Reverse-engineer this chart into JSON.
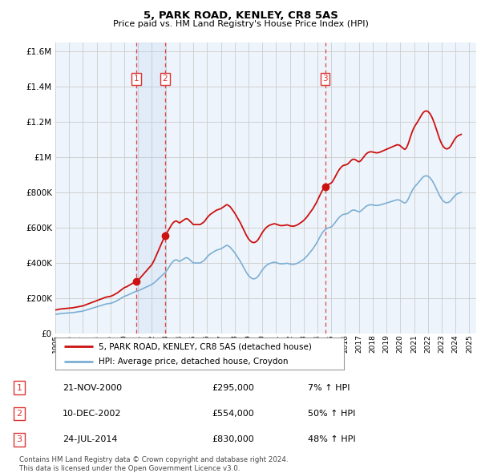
{
  "title": "5, PARK ROAD, KENLEY, CR8 5AS",
  "subtitle": "Price paid vs. HM Land Registry's House Price Index (HPI)",
  "background_color": "#ffffff",
  "chart_bg_color": "#eef4fb",
  "grid_color": "#cccccc",
  "hpi_line_color": "#7bafd4",
  "price_line_color": "#cc1111",
  "vline_color": "#dd3333",
  "shade_color": "#ddeeff",
  "ylim": [
    0,
    1650000
  ],
  "yticks": [
    0,
    200000,
    400000,
    600000,
    800000,
    1000000,
    1200000,
    1400000,
    1600000
  ],
  "ytick_labels": [
    "£0",
    "£200K",
    "£400K",
    "£600K",
    "£800K",
    "£1M",
    "£1.2M",
    "£1.4M",
    "£1.6M"
  ],
  "sales": [
    {
      "label": "1",
      "date": "21-NOV-2000",
      "year": 2000.89,
      "price": 295000,
      "pct": "7%",
      "dir": "↑"
    },
    {
      "label": "2",
      "date": "10-DEC-2002",
      "year": 2002.94,
      "price": 554000,
      "pct": "50%",
      "dir": "↑"
    },
    {
      "label": "3",
      "date": "24-JUL-2014",
      "year": 2014.55,
      "price": 830000,
      "pct": "48%",
      "dir": "↑"
    }
  ],
  "legend_entries": [
    "5, PARK ROAD, KENLEY, CR8 5AS (detached house)",
    "HPI: Average price, detached house, Croydon"
  ],
  "footer": "Contains HM Land Registry data © Crown copyright and database right 2024.\nThis data is licensed under the Open Government Licence v3.0.",
  "hpi_monthly": {
    "years": [
      1995.0,
      1995.083,
      1995.167,
      1995.25,
      1995.333,
      1995.417,
      1995.5,
      1995.583,
      1995.667,
      1995.75,
      1995.833,
      1995.917,
      1996.0,
      1996.083,
      1996.167,
      1996.25,
      1996.333,
      1996.417,
      1996.5,
      1996.583,
      1996.667,
      1996.75,
      1996.833,
      1996.917,
      1997.0,
      1997.083,
      1997.167,
      1997.25,
      1997.333,
      1997.417,
      1997.5,
      1997.583,
      1997.667,
      1997.75,
      1997.833,
      1997.917,
      1998.0,
      1998.083,
      1998.167,
      1998.25,
      1998.333,
      1998.417,
      1998.5,
      1998.583,
      1998.667,
      1998.75,
      1998.833,
      1998.917,
      1999.0,
      1999.083,
      1999.167,
      1999.25,
      1999.333,
      1999.417,
      1999.5,
      1999.583,
      1999.667,
      1999.75,
      1999.833,
      1999.917,
      2000.0,
      2000.083,
      2000.167,
      2000.25,
      2000.333,
      2000.417,
      2000.5,
      2000.583,
      2000.667,
      2000.75,
      2000.833,
      2000.917,
      2001.0,
      2001.083,
      2001.167,
      2001.25,
      2001.333,
      2001.417,
      2001.5,
      2001.583,
      2001.667,
      2001.75,
      2001.833,
      2001.917,
      2002.0,
      2002.083,
      2002.167,
      2002.25,
      2002.333,
      2002.417,
      2002.5,
      2002.583,
      2002.667,
      2002.75,
      2002.833,
      2002.917,
      2003.0,
      2003.083,
      2003.167,
      2003.25,
      2003.333,
      2003.417,
      2003.5,
      2003.583,
      2003.667,
      2003.75,
      2003.833,
      2003.917,
      2004.0,
      2004.083,
      2004.167,
      2004.25,
      2004.333,
      2004.417,
      2004.5,
      2004.583,
      2004.667,
      2004.75,
      2004.833,
      2004.917,
      2005.0,
      2005.083,
      2005.167,
      2005.25,
      2005.333,
      2005.417,
      2005.5,
      2005.583,
      2005.667,
      2005.75,
      2005.833,
      2005.917,
      2006.0,
      2006.083,
      2006.167,
      2006.25,
      2006.333,
      2006.417,
      2006.5,
      2006.583,
      2006.667,
      2006.75,
      2006.833,
      2006.917,
      2007.0,
      2007.083,
      2007.167,
      2007.25,
      2007.333,
      2007.417,
      2007.5,
      2007.583,
      2007.667,
      2007.75,
      2007.833,
      2007.917,
      2008.0,
      2008.083,
      2008.167,
      2008.25,
      2008.333,
      2008.417,
      2008.5,
      2008.583,
      2008.667,
      2008.75,
      2008.833,
      2008.917,
      2009.0,
      2009.083,
      2009.167,
      2009.25,
      2009.333,
      2009.417,
      2009.5,
      2009.583,
      2009.667,
      2009.75,
      2009.833,
      2009.917,
      2010.0,
      2010.083,
      2010.167,
      2010.25,
      2010.333,
      2010.417,
      2010.5,
      2010.583,
      2010.667,
      2010.75,
      2010.833,
      2010.917,
      2011.0,
      2011.083,
      2011.167,
      2011.25,
      2011.333,
      2011.417,
      2011.5,
      2011.583,
      2011.667,
      2011.75,
      2011.833,
      2011.917,
      2012.0,
      2012.083,
      2012.167,
      2012.25,
      2012.333,
      2012.417,
      2012.5,
      2012.583,
      2012.667,
      2012.75,
      2012.833,
      2012.917,
      2013.0,
      2013.083,
      2013.167,
      2013.25,
      2013.333,
      2013.417,
      2013.5,
      2013.583,
      2013.667,
      2013.75,
      2013.833,
      2013.917,
      2014.0,
      2014.083,
      2014.167,
      2014.25,
      2014.333,
      2014.417,
      2014.5,
      2014.583,
      2014.667,
      2014.75,
      2014.833,
      2014.917,
      2015.0,
      2015.083,
      2015.167,
      2015.25,
      2015.333,
      2015.417,
      2015.5,
      2015.583,
      2015.667,
      2015.75,
      2015.833,
      2015.917,
      2016.0,
      2016.083,
      2016.167,
      2016.25,
      2016.333,
      2016.417,
      2016.5,
      2016.583,
      2016.667,
      2016.75,
      2016.833,
      2016.917,
      2017.0,
      2017.083,
      2017.167,
      2017.25,
      2017.333,
      2017.417,
      2017.5,
      2017.583,
      2017.667,
      2017.75,
      2017.833,
      2017.917,
      2018.0,
      2018.083,
      2018.167,
      2018.25,
      2018.333,
      2018.417,
      2018.5,
      2018.583,
      2018.667,
      2018.75,
      2018.833,
      2018.917,
      2019.0,
      2019.083,
      2019.167,
      2019.25,
      2019.333,
      2019.417,
      2019.5,
      2019.583,
      2019.667,
      2019.75,
      2019.833,
      2019.917,
      2020.0,
      2020.083,
      2020.167,
      2020.25,
      2020.333,
      2020.417,
      2020.5,
      2020.583,
      2020.667,
      2020.75,
      2020.833,
      2020.917,
      2021.0,
      2021.083,
      2021.167,
      2021.25,
      2021.333,
      2021.417,
      2021.5,
      2021.583,
      2021.667,
      2021.75,
      2021.833,
      2021.917,
      2022.0,
      2022.083,
      2022.167,
      2022.25,
      2022.333,
      2022.417,
      2022.5,
      2022.583,
      2022.667,
      2022.75,
      2022.833,
      2022.917,
      2023.0,
      2023.083,
      2023.167,
      2023.25,
      2023.333,
      2023.417,
      2023.5,
      2023.583,
      2023.667,
      2023.75,
      2023.833,
      2023.917,
      2024.0,
      2024.083,
      2024.167,
      2024.25,
      2024.333,
      2024.417
    ],
    "values": [
      108000,
      109000,
      110000,
      111000,
      112000,
      113000,
      113500,
      114000,
      114500,
      115000,
      115500,
      116000,
      116500,
      117000,
      117500,
      118000,
      119000,
      120000,
      121000,
      122000,
      123000,
      124000,
      125000,
      126000,
      127000,
      129000,
      131000,
      133000,
      135000,
      137000,
      139000,
      141000,
      143000,
      145000,
      147000,
      149000,
      151000,
      153000,
      155000,
      157000,
      159000,
      161000,
      163000,
      165000,
      167000,
      168000,
      169000,
      170000,
      171000,
      173000,
      175000,
      178000,
      181000,
      184000,
      187000,
      191000,
      195000,
      199000,
      203000,
      207000,
      211000,
      213000,
      215000,
      218000,
      221000,
      224000,
      227000,
      230000,
      233000,
      236000,
      238000,
      240000,
      242000,
      245000,
      248000,
      251000,
      254000,
      257000,
      260000,
      263000,
      266000,
      269000,
      272000,
      275000,
      278000,
      283000,
      288000,
      294000,
      300000,
      306000,
      312000,
      318000,
      324000,
      330000,
      336000,
      342000,
      348000,
      358000,
      368000,
      378000,
      388000,
      398000,
      406000,
      412000,
      416000,
      418000,
      416000,
      412000,
      408000,
      412000,
      416000,
      420000,
      424000,
      428000,
      430000,
      428000,
      424000,
      418000,
      412000,
      406000,
      400000,
      400000,
      400000,
      400000,
      400000,
      400000,
      400000,
      404000,
      408000,
      412000,
      418000,
      426000,
      434000,
      441000,
      447000,
      452000,
      456000,
      460000,
      464000,
      468000,
      472000,
      474000,
      476000,
      478000,
      480000,
      484000,
      488000,
      492000,
      496000,
      500000,
      498000,
      494000,
      490000,
      482000,
      474000,
      466000,
      458000,
      448000,
      438000,
      428000,
      418000,
      408000,
      396000,
      384000,
      372000,
      360000,
      348000,
      338000,
      328000,
      322000,
      316000,
      312000,
      310000,
      310000,
      312000,
      316000,
      322000,
      330000,
      340000,
      350000,
      360000,
      368000,
      376000,
      382000,
      388000,
      392000,
      396000,
      398000,
      400000,
      402000,
      404000,
      404000,
      402000,
      400000,
      398000,
      396000,
      395000,
      395000,
      395000,
      396000,
      397000,
      398000,
      398000,
      396000,
      394000,
      393000,
      392000,
      392000,
      393000,
      395000,
      397000,
      400000,
      404000,
      408000,
      412000,
      416000,
      421000,
      427000,
      433000,
      440000,
      448000,
      456000,
      464000,
      472000,
      480000,
      490000,
      500000,
      510000,
      522000,
      534000,
      546000,
      558000,
      569000,
      578000,
      585000,
      590000,
      595000,
      598000,
      600000,
      602000,
      605000,
      610000,
      618000,
      626000,
      635000,
      644000,
      652000,
      659000,
      665000,
      670000,
      674000,
      676000,
      677000,
      678000,
      680000,
      684000,
      689000,
      694000,
      698000,
      700000,
      700000,
      698000,
      695000,
      692000,
      690000,
      692000,
      696000,
      702000,
      708000,
      714000,
      720000,
      724000,
      727000,
      729000,
      730000,
      730000,
      729000,
      728000,
      727000,
      726000,
      726000,
      727000,
      728000,
      730000,
      732000,
      734000,
      736000,
      738000,
      740000,
      742000,
      744000,
      746000,
      748000,
      750000,
      752000,
      754000,
      756000,
      758000,
      758000,
      757000,
      754000,
      750000,
      746000,
      742000,
      740000,
      744000,
      752000,
      764000,
      778000,
      792000,
      806000,
      818000,
      828000,
      836000,
      843000,
      850000,
      858000,
      866000,
      874000,
      882000,
      888000,
      892000,
      894000,
      894000,
      892000,
      888000,
      882000,
      874000,
      864000,
      852000,
      840000,
      826000,
      812000,
      798000,
      784000,
      772000,
      762000,
      754000,
      748000,
      744000,
      742000,
      742000,
      744000,
      748000,
      754000,
      762000,
      770000,
      778000,
      785000,
      790000,
      794000,
      796000,
      798000,
      800000
    ]
  }
}
